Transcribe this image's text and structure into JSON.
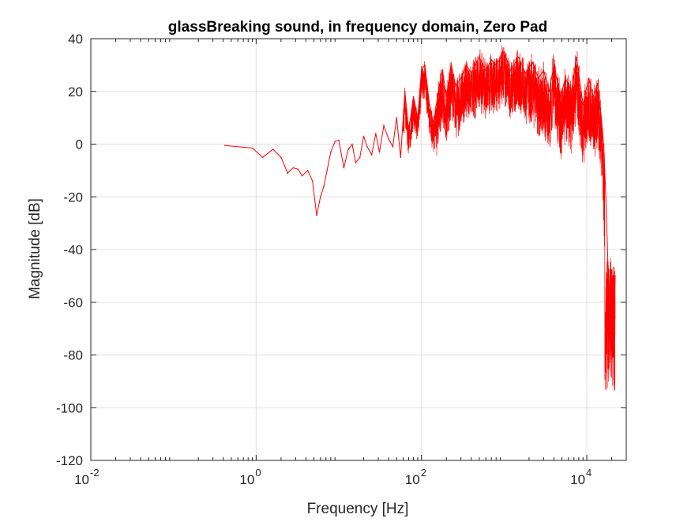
{
  "chart_data": {
    "type": "line",
    "title": "glassBreaking sound, in frequency domain, Zero Pad",
    "xlabel": "Frequency [Hz]",
    "ylabel": "Magnitude [dB]",
    "xscale": "log",
    "xlim": [
      0.01,
      30000
    ],
    "ylim": [
      -120,
      40
    ],
    "xticks": [
      {
        "value": 0.01,
        "base": "10",
        "exp": "-2"
      },
      {
        "value": 1,
        "base": "10",
        "exp": "0"
      },
      {
        "value": 100,
        "base": "10",
        "exp": "2"
      },
      {
        "value": 10000,
        "base": "10",
        "exp": "4"
      }
    ],
    "yticks": [
      40,
      20,
      0,
      -20,
      -40,
      -60,
      -80,
      -100,
      -120
    ],
    "grid": true,
    "series": [
      {
        "color": "#ff0000",
        "x": [
          0.42,
          0.9,
          1.2,
          1.6,
          2.0,
          2.4,
          2.8,
          3.2,
          3.6,
          4.2,
          4.8,
          5.4,
          6.0,
          6.6,
          7.2,
          8.0,
          9.0,
          10.0,
          11.5,
          13.0,
          14.5,
          16.0,
          18.0,
          20.0,
          22.0,
          25.0,
          28.0,
          31.0,
          35.0,
          40.0,
          45.0,
          50.0,
          56.0,
          63.0,
          70.0,
          80.0,
          90.0,
          100.0,
          110.0,
          125.0,
          140.0,
          160.0,
          180.0,
          200.0,
          230.0,
          260.0,
          300.0,
          350.0,
          400.0,
          500.0,
          600.0,
          700.0,
          800.0,
          1000.0,
          1200.0,
          1500.0,
          1800.0,
          2200.0,
          2600.0,
          3000.0,
          3500.0,
          4000.0,
          4800.0,
          5500.0,
          6500.0,
          7500.0,
          9000.0,
          10500.0,
          12000.0,
          13500.0,
          15000.0,
          16000.0,
          17000.0,
          18000.0,
          19000.0,
          20000.0,
          21000.0,
          22050.0
        ],
        "y": [
          -0.5,
          -1.5,
          -5,
          -2,
          -5,
          -11,
          -9,
          -9.5,
          -12,
          -10,
          -14,
          -27,
          -20,
          -16,
          -10,
          -3,
          1,
          1.5,
          -9,
          -2,
          0,
          -7,
          -5,
          3,
          -1,
          -4,
          4,
          -3,
          7,
          2,
          -1,
          10,
          -5,
          20,
          5,
          18,
          10,
          28,
          30,
          15,
          8,
          20,
          28,
          18,
          30,
          22,
          25,
          30,
          27,
          33,
          28,
          32,
          30,
          35,
          28,
          33,
          27,
          31,
          25,
          28,
          20,
          30,
          18,
          25,
          20,
          33,
          15,
          25,
          18,
          23,
          10,
          0,
          -20,
          -45,
          -60,
          -55,
          -70,
          -50
        ]
      }
    ]
  }
}
